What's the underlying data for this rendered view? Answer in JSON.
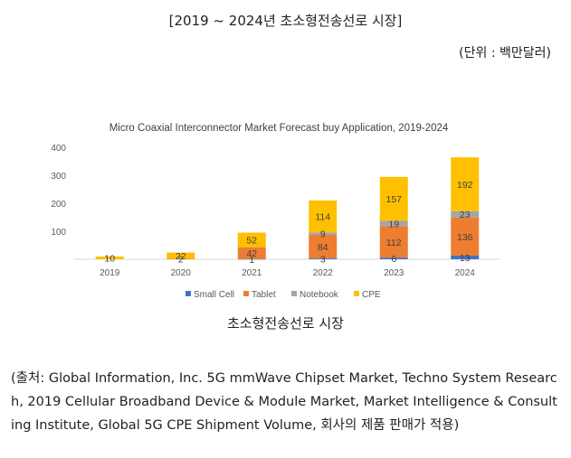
{
  "heading": "[2019 ~ 2024년 초소형전송선로 시장]",
  "unit_note": "(단위 : 백만달러)",
  "caption": "초소형전송선로 시장",
  "source": "(출처: Global Information, Inc. 5G mmWave Chipset Market, Techno System Research, 2019 Cellular Broadband Device & Module Market, Market Intelligence & Consulting Institute, Global 5G CPE Shipment Volume, 회사의 제품 판매가 적용)",
  "chart_data": {
    "type": "bar",
    "stacked": true,
    "title": "Micro Coaxial Interconnector Market Forecast buy Application, 2019-2024",
    "xlabel": "",
    "ylabel": "",
    "ylim": [
      0,
      400
    ],
    "yticks": [
      100,
      200,
      300,
      400
    ],
    "categories": [
      "2019",
      "2020",
      "2021",
      "2022",
      "2023",
      "2024"
    ],
    "series": [
      {
        "name": "Small Cell",
        "color": "#4472c4",
        "values": [
          0,
          0,
          1,
          3,
          6,
          13
        ],
        "labels": [
          "",
          "",
          "1",
          "3",
          "6",
          "13"
        ]
      },
      {
        "name": "Tablet",
        "color": "#ed7d31",
        "values": [
          0,
          2,
          42,
          84,
          112,
          136
        ],
        "labels": [
          "",
          "2",
          "42",
          "84",
          "112",
          "136"
        ]
      },
      {
        "name": "Notebook",
        "color": "#a5a5a5",
        "values": [
          0,
          0,
          0,
          9,
          19,
          23
        ],
        "labels": [
          "",
          "",
          "",
          "9",
          "19",
          "23"
        ]
      },
      {
        "name": "CPE",
        "color": "#ffc000",
        "values": [
          10,
          22,
          52,
          114,
          157,
          192
        ],
        "labels": [
          "10",
          "22",
          "52",
          "114",
          "157",
          "192"
        ]
      }
    ],
    "legend_position": "bottom",
    "grid": false
  }
}
